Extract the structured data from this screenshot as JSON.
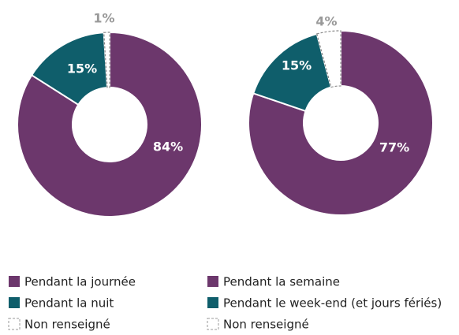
{
  "chart_data": [
    {
      "type": "pie",
      "categories": [
        "Pendant la journée",
        "Pendant la nuit",
        "Non renseigné"
      ],
      "values": [
        84,
        15,
        1
      ],
      "value_labels": [
        "84%",
        "15%",
        "1%"
      ],
      "colors": [
        "#6c376c",
        "#0f5e6b",
        "#ffffff"
      ]
    },
    {
      "type": "pie",
      "categories": [
        "Pendant la semaine",
        "Pendant le week-end (et jours fériés)",
        "Non renseigné"
      ],
      "values": [
        77,
        15,
        4
      ],
      "value_labels": [
        "77%",
        "15%",
        "4%"
      ],
      "colors": [
        "#6c376c",
        "#0f5e6b",
        "#ffffff"
      ]
    }
  ]
}
